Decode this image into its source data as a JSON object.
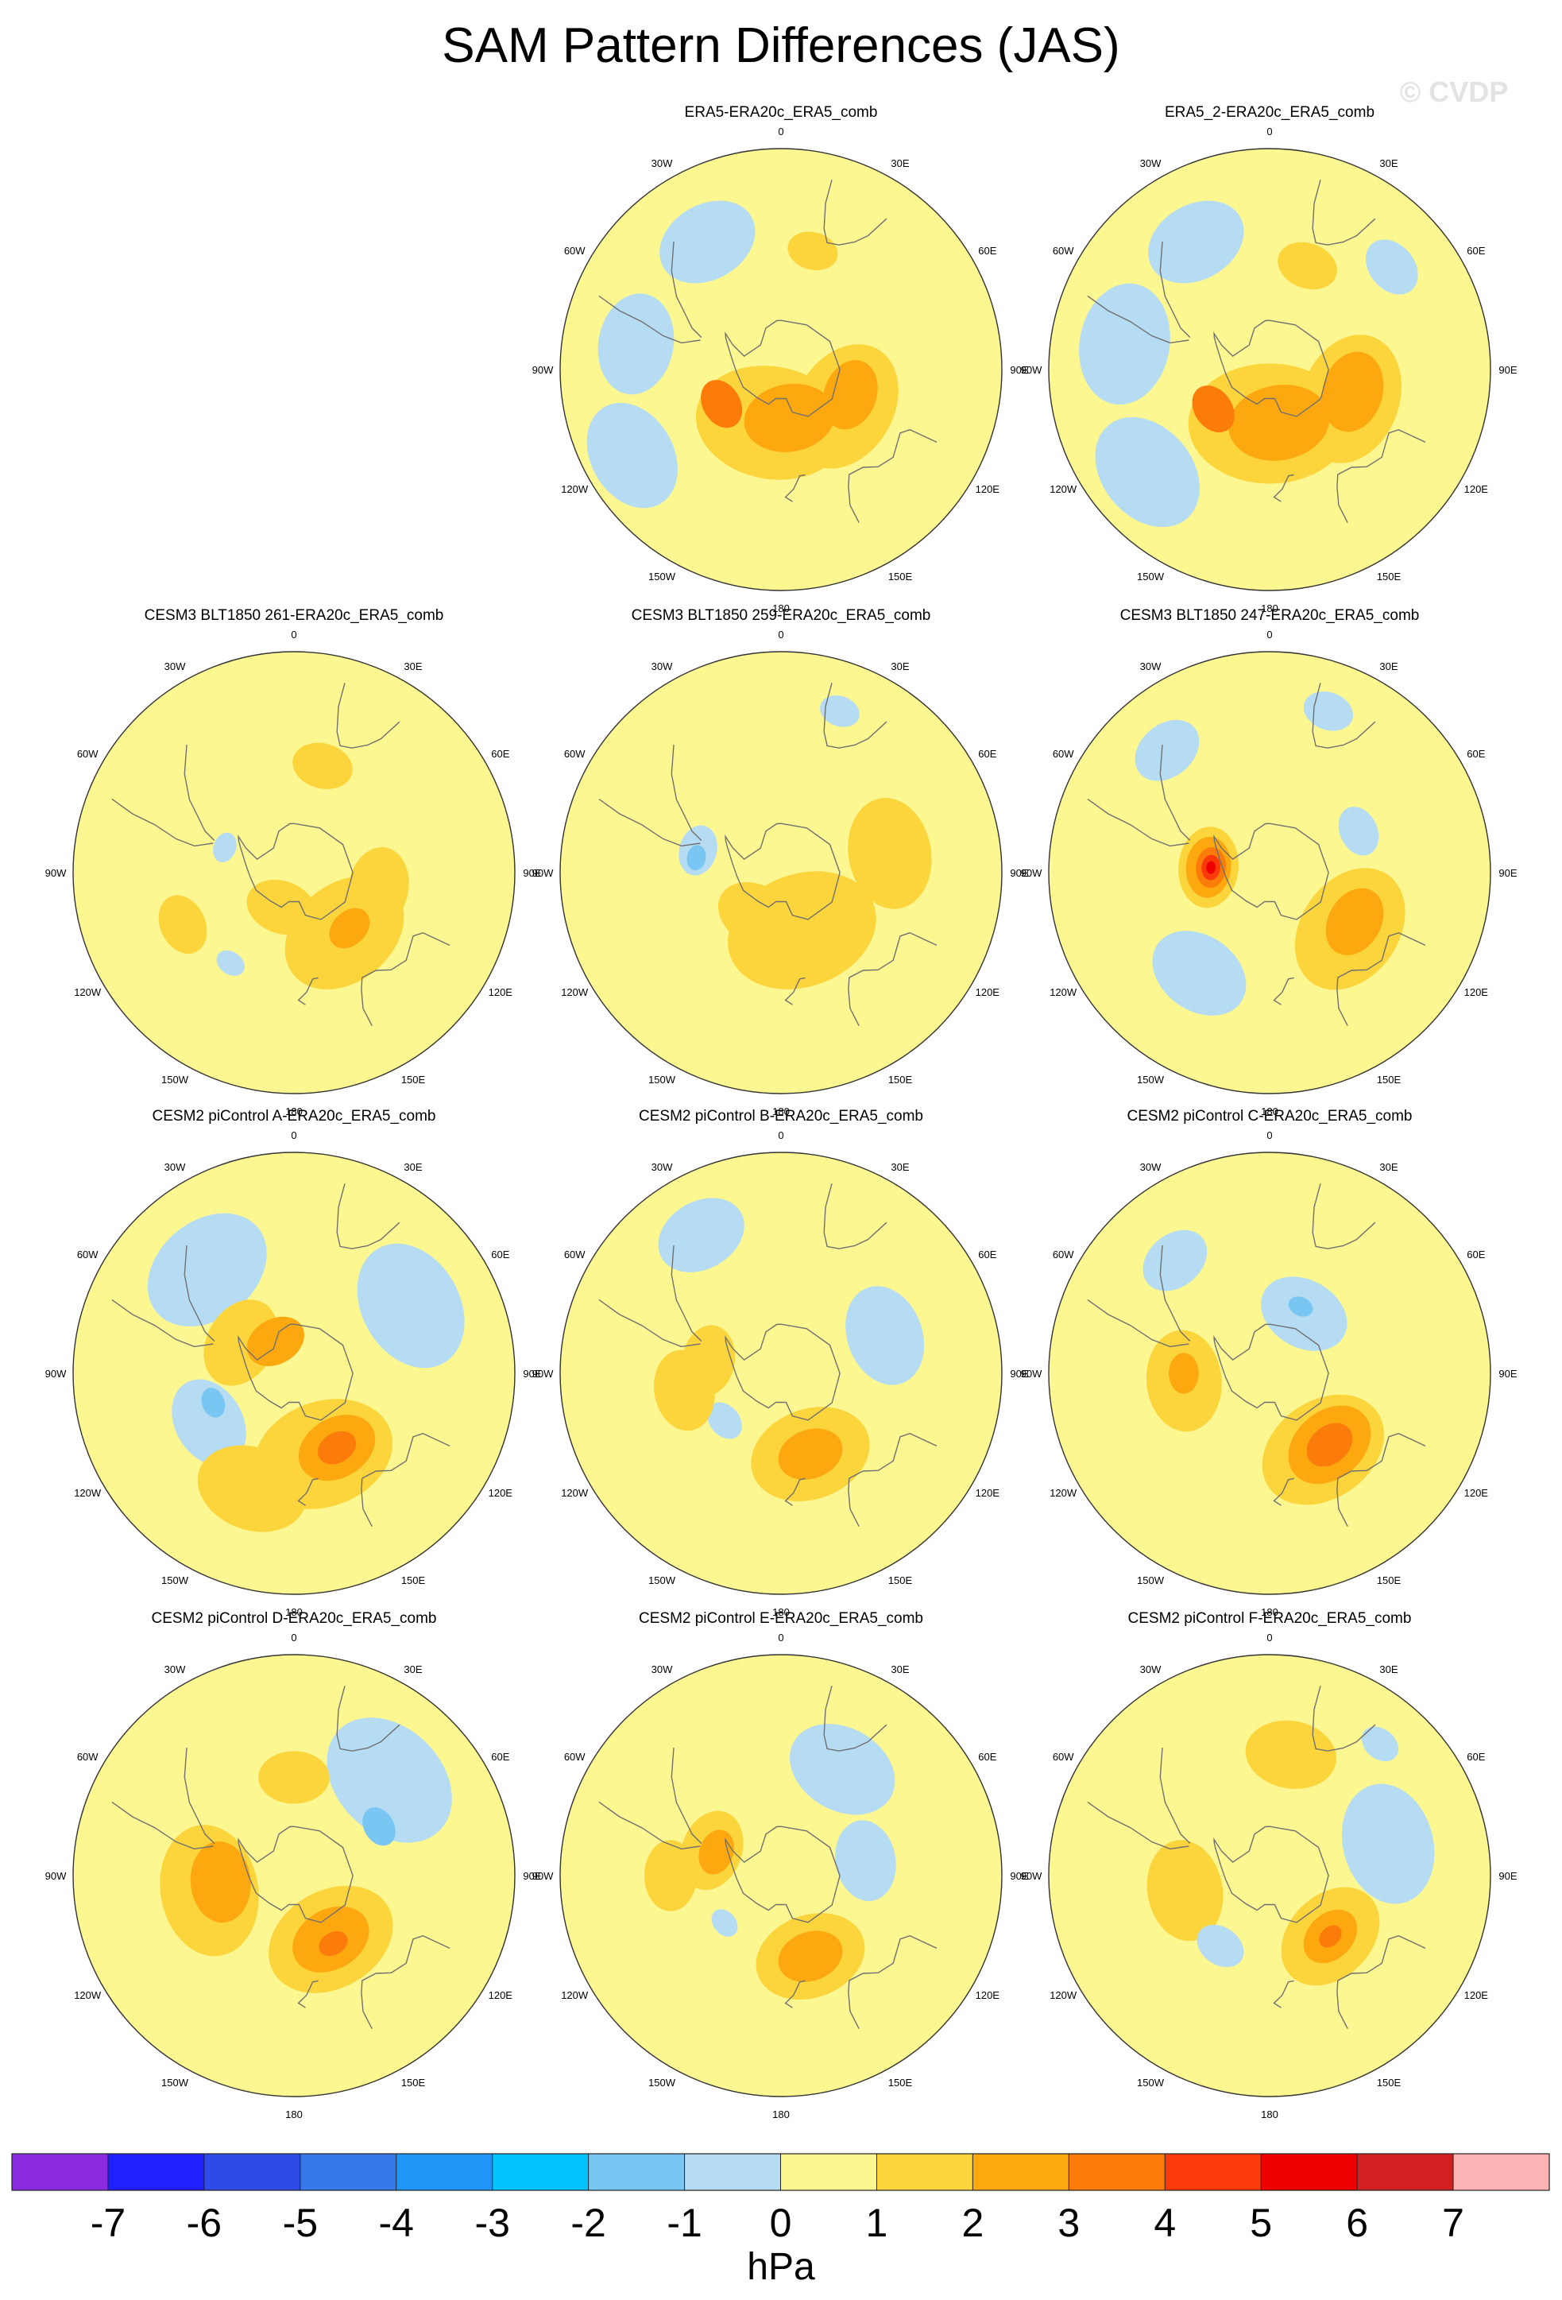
{
  "title": "SAM Pattern Differences (JAS)",
  "watermark": "© CVDP",
  "longitude_labels": [
    "0",
    "30E",
    "60E",
    "90E",
    "120E",
    "150E",
    "180",
    "150W",
    "120W",
    "90W",
    "60W",
    "30W"
  ],
  "panels": [
    {
      "label": "ERA5-ERA20c_ERA5_comb",
      "row": 0,
      "col": 1,
      "blobs": [
        {
          "lon": 190,
          "lat": -68,
          "r": 0.3,
          "v": 1
        },
        {
          "lon": 120,
          "lat": -60,
          "r": 0.26,
          "v": 1
        },
        {
          "lon": 15,
          "lat": -40,
          "r": 0.1,
          "v": 1
        },
        {
          "lon": 170,
          "lat": -70,
          "r": 0.18,
          "v": 2
        },
        {
          "lon": 110,
          "lat": -60,
          "r": 0.14,
          "v": 2
        },
        {
          "lon": 240,
          "lat": -62,
          "r": 0.1,
          "v": 3
        },
        {
          "lon": 280,
          "lat": -30,
          "r": 0.2,
          "v": -1
        },
        {
          "lon": 330,
          "lat": -30,
          "r": 0.2,
          "v": -1
        },
        {
          "lon": 240,
          "lat": -20,
          "r": 0.22,
          "v": -1
        }
      ]
    },
    {
      "label": "ERA5_2-ERA20c_ERA5_comb",
      "row": 0,
      "col": 2,
      "blobs": [
        {
          "lon": 180,
          "lat": -68,
          "r": 0.32,
          "v": 1
        },
        {
          "lon": 110,
          "lat": -55,
          "r": 0.26,
          "v": 1
        },
        {
          "lon": 20,
          "lat": -45,
          "r": 0.12,
          "v": 1
        },
        {
          "lon": 170,
          "lat": -68,
          "r": 0.2,
          "v": 2
        },
        {
          "lon": 105,
          "lat": -55,
          "r": 0.16,
          "v": 2
        },
        {
          "lon": 235,
          "lat": -62,
          "r": 0.1,
          "v": 3
        },
        {
          "lon": 280,
          "lat": -30,
          "r": 0.24,
          "v": -1
        },
        {
          "lon": 330,
          "lat": -30,
          "r": 0.2,
          "v": -1
        },
        {
          "lon": 230,
          "lat": -25,
          "r": 0.24,
          "v": -1
        },
        {
          "lon": 50,
          "lat": -25,
          "r": 0.12,
          "v": -1
        }
      ]
    },
    {
      "label": "CESM3 BLT1850 261-ERA20c_ERA5_comb",
      "row": 1,
      "col": 0,
      "blobs": [
        {
          "lon": 140,
          "lat": -58,
          "r": 0.26,
          "v": 1
        },
        {
          "lon": 100,
          "lat": -55,
          "r": 0.16,
          "v": 1
        },
        {
          "lon": 15,
          "lat": -45,
          "r": 0.12,
          "v": 1
        },
        {
          "lon": 245,
          "lat": -40,
          "r": 0.12,
          "v": 1
        },
        {
          "lon": 200,
          "lat": -75,
          "r": 0.14,
          "v": 1
        },
        {
          "lon": 135,
          "lat": -58,
          "r": 0.09,
          "v": 2
        },
        {
          "lon": 290,
          "lat": -60,
          "r": 0.06,
          "v": -1
        },
        {
          "lon": 215,
          "lat": -45,
          "r": 0.06,
          "v": -1
        }
      ]
    },
    {
      "label": "CESM3 BLT1850 259-ERA20c_ERA5_comb",
      "row": 1,
      "col": 1,
      "blobs": [
        {
          "lon": 160,
          "lat": -65,
          "r": 0.3,
          "v": 1
        },
        {
          "lon": 80,
          "lat": -45,
          "r": 0.22,
          "v": 1
        },
        {
          "lon": 210,
          "lat": -70,
          "r": 0.16,
          "v": 1
        },
        {
          "lon": 285,
          "lat": -55,
          "r": 0.1,
          "v": -1
        },
        {
          "lon": 20,
          "lat": -20,
          "r": 0.08,
          "v": -1
        },
        {
          "lon": 280,
          "lat": -55,
          "r": 0.05,
          "v": -2
        }
      ]
    },
    {
      "label": "CESM3 BLT1850 247-ERA20c_ERA5_comb",
      "row": 1,
      "col": 2,
      "blobs": [
        {
          "lon": 275,
          "lat": -65,
          "r": 0.16,
          "v": 1
        },
        {
          "lon": 275,
          "lat": -65,
          "r": 0.12,
          "v": 2
        },
        {
          "lon": 275,
          "lat": -66,
          "r": 0.08,
          "v": 3
        },
        {
          "lon": 275,
          "lat": -66,
          "r": 0.05,
          "v": 4
        },
        {
          "lon": 275,
          "lat": -66,
          "r": 0.025,
          "v": 5
        },
        {
          "lon": 125,
          "lat": -50,
          "r": 0.26,
          "v": 1
        },
        {
          "lon": 120,
          "lat": -50,
          "r": 0.14,
          "v": 2
        },
        {
          "lon": 215,
          "lat": -40,
          "r": 0.2,
          "v": -1
        },
        {
          "lon": 65,
          "lat": -50,
          "r": 0.1,
          "v": -1
        },
        {
          "lon": 320,
          "lat": -25,
          "r": 0.14,
          "v": -1
        },
        {
          "lon": 20,
          "lat": -20,
          "r": 0.1,
          "v": -1
        }
      ]
    },
    {
      "label": "CESM2 piControl A-ERA20c_ERA5_comb",
      "row": 2,
      "col": 0,
      "blobs": [
        {
          "lon": 320,
          "lat": -35,
          "r": 0.26,
          "v": -1
        },
        {
          "lon": 60,
          "lat": -35,
          "r": 0.26,
          "v": -1
        },
        {
          "lon": 240,
          "lat": -50,
          "r": 0.18,
          "v": -1
        },
        {
          "lon": 250,
          "lat": -55,
          "r": 0.06,
          "v": -2
        },
        {
          "lon": 160,
          "lat": -55,
          "r": 0.28,
          "v": 1
        },
        {
          "lon": 300,
          "lat": -65,
          "r": 0.18,
          "v": 1
        },
        {
          "lon": 200,
          "lat": -40,
          "r": 0.22,
          "v": 1
        },
        {
          "lon": 150,
          "lat": -55,
          "r": 0.16,
          "v": 2
        },
        {
          "lon": 330,
          "lat": -75,
          "r": 0.12,
          "v": 2
        },
        {
          "lon": 150,
          "lat": -55,
          "r": 0.08,
          "v": 3
        }
      ]
    },
    {
      "label": "CESM2 piControl B-ERA20c_ERA5_comb",
      "row": 2,
      "col": 1,
      "blobs": [
        {
          "lon": 330,
          "lat": -25,
          "r": 0.18,
          "v": -1
        },
        {
          "lon": 70,
          "lat": -45,
          "r": 0.2,
          "v": -1
        },
        {
          "lon": 230,
          "lat": -60,
          "r": 0.08,
          "v": -1
        },
        {
          "lon": 160,
          "lat": -55,
          "r": 0.24,
          "v": 1
        },
        {
          "lon": 280,
          "lat": -60,
          "r": 0.14,
          "v": 1
        },
        {
          "lon": 260,
          "lat": -50,
          "r": 0.16,
          "v": 1
        },
        {
          "lon": 160,
          "lat": -55,
          "r": 0.13,
          "v": 2
        }
      ]
    },
    {
      "label": "CESM2 piControl C-ERA20c_ERA5_comb",
      "row": 2,
      "col": 2,
      "blobs": [
        {
          "lon": 30,
          "lat": -62,
          "r": 0.18,
          "v": -1
        },
        {
          "lon": 320,
          "lat": -30,
          "r": 0.14,
          "v": -1
        },
        {
          "lon": 25,
          "lat": -60,
          "r": 0.05,
          "v": -2
        },
        {
          "lon": 145,
          "lat": -52,
          "r": 0.26,
          "v": 1
        },
        {
          "lon": 265,
          "lat": -55,
          "r": 0.2,
          "v": 1
        },
        {
          "lon": 140,
          "lat": -52,
          "r": 0.18,
          "v": 2
        },
        {
          "lon": 140,
          "lat": -52,
          "r": 0.1,
          "v": 3
        },
        {
          "lon": 270,
          "lat": -55,
          "r": 0.08,
          "v": 2
        }
      ]
    },
    {
      "label": "CESM2 piControl D-ERA20c_ERA5_comb",
      "row": 3,
      "col": 0,
      "blobs": [
        {
          "lon": 45,
          "lat": -35,
          "r": 0.28,
          "v": -1
        },
        {
          "lon": 60,
          "lat": -50,
          "r": 0.08,
          "v": -2
        },
        {
          "lon": 260,
          "lat": -55,
          "r": 0.26,
          "v": 1
        },
        {
          "lon": 150,
          "lat": -60,
          "r": 0.26,
          "v": 1
        },
        {
          "lon": 0,
          "lat": -50,
          "r": 0.14,
          "v": 1
        },
        {
          "lon": 265,
          "lat": -60,
          "r": 0.16,
          "v": 2
        },
        {
          "lon": 150,
          "lat": -60,
          "r": 0.16,
          "v": 2
        },
        {
          "lon": 150,
          "lat": -58,
          "r": 0.06,
          "v": 3
        }
      ]
    },
    {
      "label": "CESM2 piControl E-ERA20c_ERA5_comb",
      "row": 3,
      "col": 1,
      "blobs": [
        {
          "lon": 30,
          "lat": -40,
          "r": 0.22,
          "v": -1
        },
        {
          "lon": 80,
          "lat": -55,
          "r": 0.16,
          "v": -1
        },
        {
          "lon": 230,
          "lat": -60,
          "r": 0.06,
          "v": -1
        },
        {
          "lon": 290,
          "lat": -60,
          "r": 0.16,
          "v": 1
        },
        {
          "lon": 160,
          "lat": -55,
          "r": 0.22,
          "v": 1
        },
        {
          "lon": 270,
          "lat": -45,
          "r": 0.14,
          "v": 1
        },
        {
          "lon": 290,
          "lat": -62,
          "r": 0.09,
          "v": 2
        },
        {
          "lon": 160,
          "lat": -55,
          "r": 0.13,
          "v": 2
        }
      ]
    },
    {
      "label": "CESM2 piControl F-ERA20c_ERA5_comb",
      "row": 3,
      "col": 2,
      "blobs": [
        {
          "lon": 10,
          "lat": -40,
          "r": 0.18,
          "v": 1
        },
        {
          "lon": 260,
          "lat": -55,
          "r": 0.2,
          "v": 1
        },
        {
          "lon": 135,
          "lat": -55,
          "r": 0.22,
          "v": 1
        },
        {
          "lon": 135,
          "lat": -55,
          "r": 0.12,
          "v": 2
        },
        {
          "lon": 135,
          "lat": -55,
          "r": 0.05,
          "v": 3
        },
        {
          "lon": 75,
          "lat": -40,
          "r": 0.24,
          "v": -1
        },
        {
          "lon": 215,
          "lat": -55,
          "r": 0.1,
          "v": -1
        },
        {
          "lon": 40,
          "lat": -20,
          "r": 0.08,
          "v": -1
        }
      ]
    }
  ],
  "colorbar": {
    "ticks": [
      "-7",
      "-6",
      "-5",
      "-4",
      "-3",
      "-2",
      "-1",
      "0",
      "1",
      "2",
      "3",
      "4",
      "5",
      "6",
      "7"
    ],
    "colors": [
      "#8a2be2",
      "#1f1fff",
      "#2d4be6",
      "#3778ea",
      "#1e96f5",
      "#00c3ff",
      "#7ac6f2",
      "#b5dcf3",
      "#fdf791",
      "#fcd43b",
      "#fca80e",
      "#fb7b0b",
      "#fb3a0a",
      "#ee0000",
      "#d22020",
      "#fdb4b4"
    ],
    "unit": "hPa"
  }
}
